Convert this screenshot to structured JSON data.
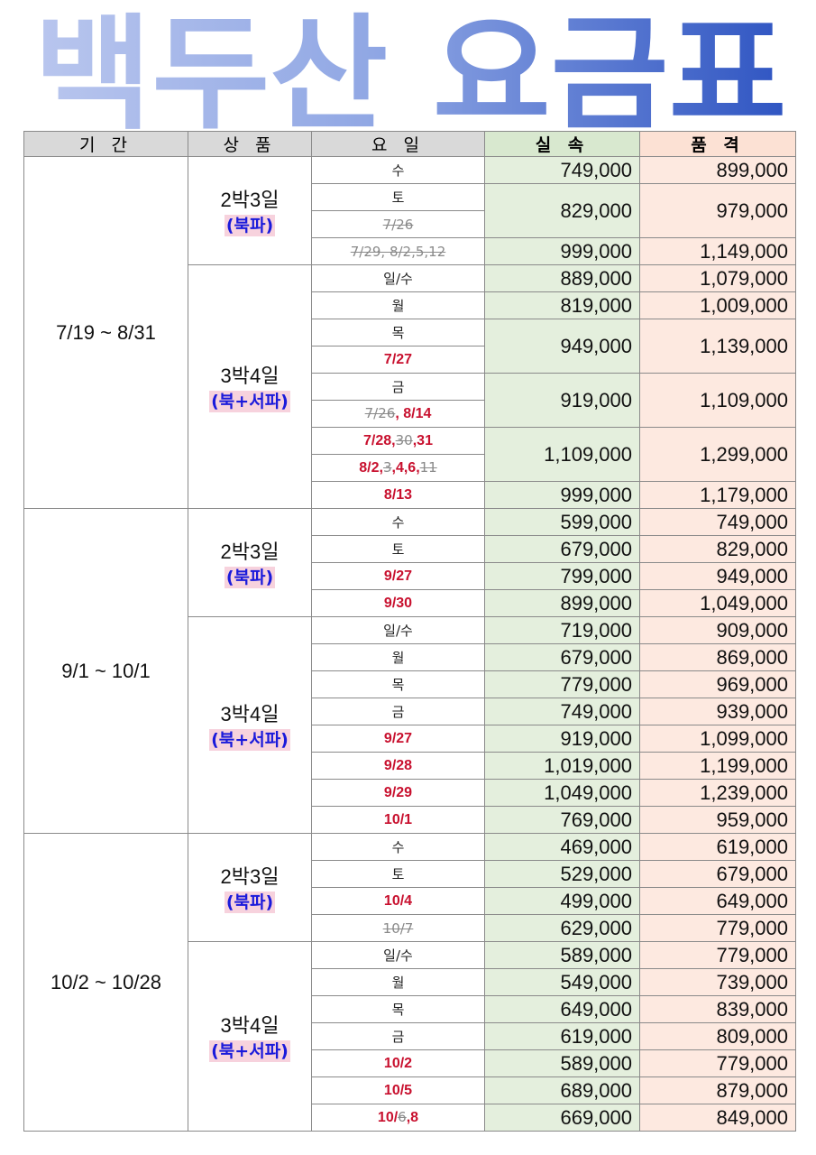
{
  "title": "백두산 요금표",
  "headers": {
    "period": "기 간",
    "product": "상 품",
    "day": "요 일",
    "net": "실 속",
    "premium": "품 격"
  },
  "sections": [
    {
      "period": "7/19 ~ 8/31",
      "groups": [
        {
          "name": "2박3일",
          "sub": "(북파)",
          "rows": [
            {
              "d": [
                {
                  "t": "수"
                }
              ],
              "net": "749,000",
              "prem": "899,000"
            },
            {
              "d": [
                {
                  "t": "토"
                }
              ],
              "net": "829,000",
              "prem": "979,000"
            },
            {
              "d": [
                {
                  "t": "7/26",
                  "s": true
                }
              ],
              "merged": true
            },
            {
              "d": [
                {
                  "t": "7/29,  8/2,5,12",
                  "s": true
                }
              ],
              "net": "999,000",
              "prem": "1,149,000"
            }
          ]
        },
        {
          "name": "3박4일",
          "sub": "(북+서파)",
          "rows": [
            {
              "d": [
                {
                  "t": "일/수"
                }
              ],
              "net": "889,000",
              "prem": "1,079,000"
            },
            {
              "d": [
                {
                  "t": "월"
                }
              ],
              "net": "819,000",
              "prem": "1,009,000"
            },
            {
              "d": [
                {
                  "t": "목"
                }
              ],
              "net": "949,000",
              "prem": "1,139,000"
            },
            {
              "d": [
                {
                  "t": "7/27",
                  "r": true
                }
              ],
              "merged": true
            },
            {
              "d": [
                {
                  "t": "금"
                }
              ],
              "net": "919,000",
              "prem": "1,109,000"
            },
            {
              "d": [
                {
                  "t": "7/26",
                  "s": true
                },
                {
                  "t": ",  8/14",
                  "r": true
                }
              ],
              "merged": true
            },
            {
              "d": [
                {
                  "t": "7/28,",
                  "r": true
                },
                {
                  "t": "30",
                  "s": true
                },
                {
                  "t": ",31",
                  "r": true
                }
              ],
              "net": "1,109,000",
              "prem": "1,299,000"
            },
            {
              "d": [
                {
                  "t": "8/2,",
                  "r": true
                },
                {
                  "t": "3",
                  "s": true
                },
                {
                  "t": ",4,6,",
                  "r": true
                },
                {
                  "t": "11",
                  "s": true
                }
              ],
              "merged": true
            },
            {
              "d": [
                {
                  "t": "8/13",
                  "r": true
                }
              ],
              "net": "999,000",
              "prem": "1,179,000"
            }
          ]
        }
      ]
    },
    {
      "period": "9/1 ~ 10/1",
      "groups": [
        {
          "name": "2박3일",
          "sub": "(북파)",
          "rows": [
            {
              "d": [
                {
                  "t": "수"
                }
              ],
              "net": "599,000",
              "prem": "749,000"
            },
            {
              "d": [
                {
                  "t": "토"
                }
              ],
              "net": "679,000",
              "prem": "829,000"
            },
            {
              "d": [
                {
                  "t": "9/27",
                  "r": true
                }
              ],
              "net": "799,000",
              "prem": "949,000"
            },
            {
              "d": [
                {
                  "t": "9/30",
                  "r": true
                }
              ],
              "net": "899,000",
              "prem": "1,049,000"
            }
          ]
        },
        {
          "name": "3박4일",
          "sub": "(북+서파)",
          "rows": [
            {
              "d": [
                {
                  "t": "일/수"
                }
              ],
              "net": "719,000",
              "prem": "909,000"
            },
            {
              "d": [
                {
                  "t": "월"
                }
              ],
              "net": "679,000",
              "prem": "869,000"
            },
            {
              "d": [
                {
                  "t": "목"
                }
              ],
              "net": "779,000",
              "prem": "969,000"
            },
            {
              "d": [
                {
                  "t": "금"
                }
              ],
              "net": "749,000",
              "prem": "939,000"
            },
            {
              "d": [
                {
                  "t": "9/27",
                  "r": true
                }
              ],
              "net": "919,000",
              "prem": "1,099,000"
            },
            {
              "d": [
                {
                  "t": "9/28",
                  "r": true
                }
              ],
              "net": "1,019,000",
              "prem": "1,199,000"
            },
            {
              "d": [
                {
                  "t": "9/29",
                  "r": true
                }
              ],
              "net": "1,049,000",
              "prem": "1,239,000"
            },
            {
              "d": [
                {
                  "t": "10/1",
                  "r": true
                }
              ],
              "net": "769,000",
              "prem": "959,000"
            }
          ]
        }
      ]
    },
    {
      "period": "10/2 ~ 10/28",
      "groups": [
        {
          "name": "2박3일",
          "sub": "(북파)",
          "rows": [
            {
              "d": [
                {
                  "t": "수"
                }
              ],
              "net": "469,000",
              "prem": "619,000"
            },
            {
              "d": [
                {
                  "t": "토"
                }
              ],
              "net": "529,000",
              "prem": "679,000"
            },
            {
              "d": [
                {
                  "t": "10/4",
                  "r": true
                }
              ],
              "net": "499,000",
              "prem": "649,000"
            },
            {
              "d": [
                {
                  "t": "10/7",
                  "s": true
                }
              ],
              "net": "629,000",
              "prem": "779,000"
            }
          ]
        },
        {
          "name": "3박4일",
          "sub": "(북+서파)",
          "rows": [
            {
              "d": [
                {
                  "t": "일/수"
                }
              ],
              "net": "589,000",
              "prem": "779,000"
            },
            {
              "d": [
                {
                  "t": "월"
                }
              ],
              "net": "549,000",
              "prem": "739,000"
            },
            {
              "d": [
                {
                  "t": "목"
                }
              ],
              "net": "649,000",
              "prem": "839,000"
            },
            {
              "d": [
                {
                  "t": "금"
                }
              ],
              "net": "619,000",
              "prem": "809,000"
            },
            {
              "d": [
                {
                  "t": "10/2",
                  "r": true
                }
              ],
              "net": "589,000",
              "prem": "779,000"
            },
            {
              "d": [
                {
                  "t": "10/5",
                  "r": true
                }
              ],
              "net": "689,000",
              "prem": "879,000"
            },
            {
              "d": [
                {
                  "t": "10/",
                  "r": true
                },
                {
                  "t": "6",
                  "s": true
                },
                {
                  "t": ",8",
                  "r": true
                }
              ],
              "net": "669,000",
              "prem": "849,000"
            }
          ]
        }
      ]
    }
  ]
}
